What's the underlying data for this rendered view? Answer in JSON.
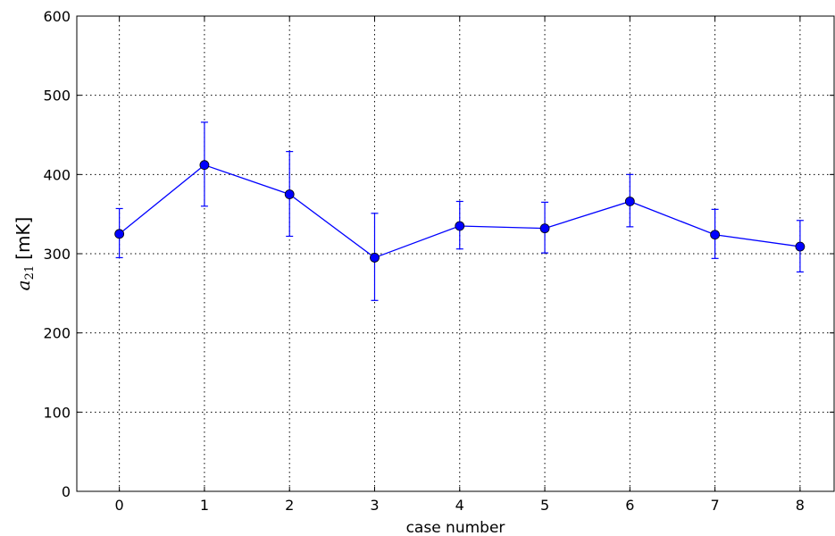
{
  "chart_data": {
    "type": "line",
    "xlabel": "case number",
    "ylabel": {
      "symbol": "a",
      "subscript": "21",
      "unit": "[mK]"
    },
    "xlim": [
      -0.5,
      8.4
    ],
    "ylim": [
      0,
      600
    ],
    "xticks": [
      0,
      1,
      2,
      3,
      4,
      5,
      6,
      7,
      8
    ],
    "yticks": [
      0,
      100,
      200,
      300,
      400,
      500,
      600
    ],
    "grid": true,
    "grid_style": "dotted",
    "series": [
      {
        "color": "#0000ff",
        "marker": "circle",
        "x": [
          0,
          1,
          2,
          3,
          4,
          5,
          6,
          7,
          8
        ],
        "y": [
          325,
          412,
          375,
          295,
          335,
          332,
          366,
          324,
          309
        ],
        "err_low": [
          295,
          360,
          322,
          241,
          306,
          301,
          334,
          294,
          277
        ],
        "err_high": [
          357,
          466,
          429,
          351,
          366,
          365,
          400,
          356,
          342
        ]
      }
    ]
  }
}
